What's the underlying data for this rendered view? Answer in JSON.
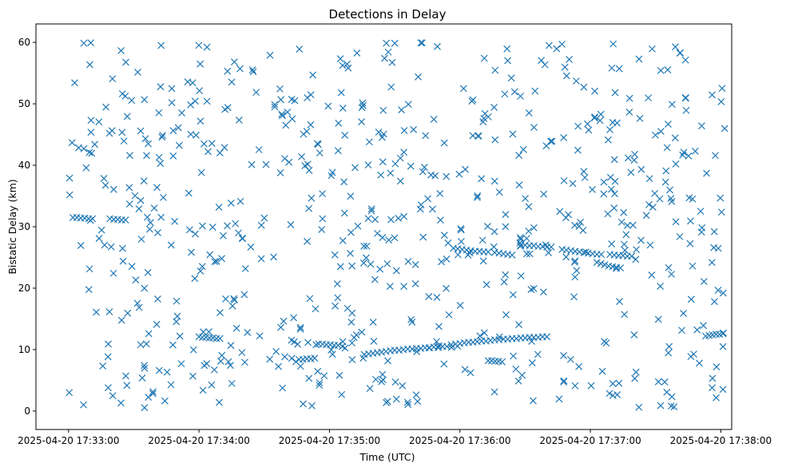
{
  "chart_data": {
    "type": "scatter",
    "title": "Detections in Delay",
    "xlabel": "Time (UTC)",
    "ylabel": "Bistatic Delay (km)",
    "marker": "x",
    "color": "#1f77b4",
    "x_unit": "seconds after 2025-04-20 17:32:00 UTC",
    "xlim": [
      45,
      365
    ],
    "ylim": [
      -3,
      63
    ],
    "xticks": [
      60,
      120,
      180,
      240,
      300,
      360
    ],
    "xtick_labels": [
      "2025-04-20 17:33:00",
      "2025-04-20 17:34:00",
      "2025-04-20 17:35:00",
      "2025-04-20 17:36:00",
      "2025-04-20 17:37:00",
      "2025-04-20 17:38:00"
    ],
    "yticks": [
      0,
      10,
      20,
      30,
      40,
      50,
      60
    ],
    "ytick_labels": [
      "0",
      "10",
      "20",
      "30",
      "40",
      "50",
      "60"
    ],
    "tracks": [
      {
        "x": [
          62.0,
          63.8,
          65.6,
          67.4,
          69.2,
          71.0
        ],
        "y": [
          31.5,
          31.5,
          31.4,
          31.4,
          31.3,
          31.3
        ]
      },
      {
        "x": [
          79.0,
          80.8,
          82.6,
          84.4,
          86.2
        ],
        "y": [
          31.3,
          31.2,
          31.2,
          31.1,
          31.1
        ]
      },
      {
        "x": [
          120.0,
          121.6,
          123.2,
          124.8,
          126.4,
          128.0,
          129.6
        ],
        "y": [
          12.1,
          12.0,
          12.0,
          11.9,
          11.9,
          11.8,
          11.8
        ]
      },
      {
        "x": [
          166.0,
          167.8,
          169.6,
          171.4,
          173.2
        ],
        "y": [
          8.4,
          8.4,
          8.5,
          8.5,
          8.6
        ]
      },
      {
        "x": [
          175.0,
          176.8,
          178.6,
          180.4,
          182.2,
          184.0
        ],
        "y": [
          10.9,
          10.9,
          10.8,
          10.8,
          10.7,
          10.7
        ]
      },
      {
        "x": [
          196.0,
          198.0,
          200.0,
          202.0,
          204.0,
          206.0,
          208.0,
          210.0,
          212.0,
          214.0,
          216.0,
          218.0,
          220.0,
          222.0,
          224.0,
          226.0,
          228.0,
          230.0,
          232.0,
          234.0
        ],
        "y": [
          9.2,
          9.3,
          9.4,
          9.5,
          9.6,
          9.7,
          9.8,
          9.9,
          9.9,
          10.0,
          10.1,
          10.1,
          10.2,
          10.2,
          10.3,
          10.3,
          10.4,
          10.4,
          10.5,
          10.5
        ]
      },
      {
        "x": [
          236.0,
          238.0,
          240.0,
          242.0,
          244.0,
          246.0,
          248.0,
          250.0,
          252.0,
          254.0,
          256.0,
          258.0,
          260.0,
          262.0,
          264.0,
          266.0,
          268.0,
          270.0,
          272.0,
          274.0,
          276.0,
          278.0,
          280.0
        ],
        "y": [
          10.8,
          10.9,
          11.0,
          11.1,
          11.2,
          11.2,
          11.3,
          11.4,
          11.4,
          11.5,
          11.6,
          11.6,
          11.7,
          11.7,
          11.8,
          11.8,
          11.9,
          11.9,
          12.0,
          12.0,
          12.0,
          12.1,
          12.1
        ]
      },
      {
        "x": [
          253.0,
          254.6,
          256.2,
          257.8,
          259.4
        ],
        "y": [
          8.2,
          8.2,
          8.1,
          8.1,
          8.0
        ]
      },
      {
        "x": [
          237.0,
          239.0,
          241.0,
          243.0,
          245.0,
          247.0,
          249.0,
          251.0,
          253.0
        ],
        "y": [
          26.5,
          26.4,
          26.3,
          26.2,
          26.1,
          26.0,
          26.0,
          25.9,
          25.9
        ]
      },
      {
        "x": [
          256.0,
          258.0,
          260.0,
          262.0,
          264.0
        ],
        "y": [
          25.8,
          25.7,
          25.6,
          25.5,
          25.4
        ]
      },
      {
        "x": [
          268.0,
          270.0,
          272.0,
          274.0
        ],
        "y": [
          27.0,
          27.0,
          26.9,
          26.9
        ]
      },
      {
        "x": [
          276.0,
          278.0,
          280.0,
          282.0
        ],
        "y": [
          26.8,
          26.8,
          26.7,
          26.7
        ]
      },
      {
        "x": [
          287.0,
          289.0,
          291.0,
          293.0,
          295.0,
          297.0,
          299.0,
          301.0,
          303.0,
          305.0
        ],
        "y": [
          26.3,
          26.2,
          26.1,
          26.0,
          25.9,
          25.8,
          25.7,
          25.6,
          25.5,
          25.5
        ]
      },
      {
        "x": [
          303.0,
          304.8,
          306.6,
          308.4,
          310.2,
          312.0,
          313.8
        ],
        "y": [
          24.2,
          24.0,
          23.8,
          23.6,
          23.5,
          23.4,
          23.3
        ]
      },
      {
        "x": [
          309.0,
          311.0,
          313.0,
          315.0,
          317.0,
          319.0
        ],
        "y": [
          25.5,
          25.4,
          25.3,
          25.3,
          25.2,
          25.2
        ]
      },
      {
        "x": [
          353.0,
          354.6,
          356.2,
          357.8,
          359.4,
          361.0
        ],
        "y": [
          12.2,
          12.3,
          12.4,
          12.5,
          12.5,
          12.6
        ]
      }
    ],
    "clutter_count": 700,
    "clutter_seed": 20250420,
    "clutter_x_range": [
      60,
      362
    ],
    "clutter_y_range": [
      0.5,
      60
    ]
  }
}
